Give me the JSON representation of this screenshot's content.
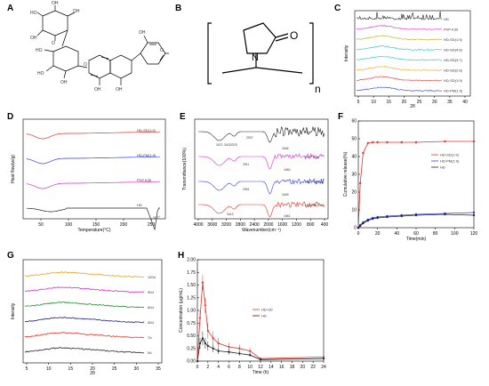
{
  "panels": {
    "A": "A",
    "B": "B",
    "C": "C",
    "D": "D",
    "E": "E",
    "F": "F",
    "G": "G",
    "H": "H"
  },
  "panel_a": {
    "labels": {
      "oh1": "OH",
      "oh2": "OH",
      "oh3": "OH",
      "oh4": "OH",
      "oh5": "OH",
      "oh6": "OH",
      "oh7": "OH",
      "o1": "O",
      "o2": "O",
      "o3": "O",
      "ho1": "HO",
      "ho2": "HO",
      "ho3": "HO"
    }
  },
  "panel_b": {
    "o": "O",
    "n": "N",
    "sub": "n"
  },
  "colors": {
    "black": "#222222",
    "red": "#e8302a",
    "blue": "#2f3fe0",
    "magenta": "#e02ad8",
    "green": "#1a8f2a",
    "orange": "#f0a020",
    "cyan": "#20c0d0",
    "olive": "#b0b020",
    "darkblue": "#1a1a8f"
  },
  "chart_data": [
    {
      "id": "C",
      "type": "line",
      "xlabel": "2θ",
      "ylabel": "Intensity",
      "xticks": [
        "5",
        "10",
        "15",
        "20",
        "25",
        "30",
        "35",
        "40"
      ],
      "series": [
        {
          "name": "HD",
          "color": "#222222"
        },
        {
          "name": "PVP K30",
          "color": "#e02ad8"
        },
        {
          "name": "HD-SD(1:5)",
          "color": "#b0b020"
        },
        {
          "name": "HD-SD(4:6)",
          "color": "#20c0d0"
        },
        {
          "name": "HD-SD(3:7)",
          "color": "#20c0d0"
        },
        {
          "name": "HD-SD(2:8)",
          "color": "#f0a020"
        },
        {
          "name": "HD-SD(1:9)",
          "color": "#e8302a"
        },
        {
          "name": "HD-PM(1:9)",
          "color": "#2f3fe0"
        }
      ]
    },
    {
      "id": "D",
      "type": "line",
      "xlabel": "Temperature(°C)",
      "ylabel": "Heat flow(w/g)",
      "xticks": [
        "50",
        "100",
        "150",
        "200",
        "250"
      ],
      "annotations": [
        "267°"
      ],
      "series": [
        {
          "name": "HD-SD(1:9)",
          "color": "#e8302a"
        },
        {
          "name": "HD-PM(1:9)",
          "color": "#2f3fe0"
        },
        {
          "name": "PVP K30",
          "color": "#e02ad8"
        },
        {
          "name": "HD",
          "color": "#222222"
        }
      ]
    },
    {
      "id": "E",
      "type": "line",
      "xlabel": "Wavenumber(cm⁻¹)",
      "ylabel": "Transmittance(100%)",
      "xticks": [
        "4000",
        "3600",
        "3200",
        "2800",
        "2400",
        "2000",
        "1600",
        "1200",
        "800",
        "400"
      ],
      "annotations": [
        "3470",
        "3421",
        "3378",
        "2937",
        "2911",
        "2951",
        "3413",
        "1646",
        "1660",
        "1649",
        "1661"
      ],
      "series": [
        {
          "name": "HD",
          "color": "#222222"
        },
        {
          "name": "PVP K30",
          "color": "#e02ad8"
        },
        {
          "name": "HD-PM(1:9)",
          "color": "#2f3fe0"
        },
        {
          "name": "HD-SD(1:9)",
          "color": "#e8302a"
        }
      ]
    },
    {
      "id": "F",
      "type": "line",
      "xlabel": "Time(min)",
      "ylabel": "Cumulative release(%)",
      "xticks": [
        "0",
        "20",
        "40",
        "60",
        "80",
        "100",
        "120"
      ],
      "yticks": [
        "0",
        "10",
        "20",
        "30",
        "40",
        "50",
        "60"
      ],
      "ylim": [
        0,
        60
      ],
      "xlim": [
        0,
        120
      ],
      "x": [
        0,
        2,
        5,
        10,
        15,
        20,
        30,
        45,
        60,
        90,
        120
      ],
      "series": [
        {
          "name": "HD-SD(1:9)",
          "color": "#e8302a",
          "values": [
            0,
            25,
            42,
            47.5,
            48,
            48,
            48,
            48,
            48,
            48.5,
            48.5
          ]
        },
        {
          "name": "HD-PM(1:9)",
          "color": "#2f3fe0",
          "values": [
            0,
            1.5,
            3,
            4.5,
            5.5,
            6,
            6.5,
            7,
            7.5,
            8,
            8.5
          ]
        },
        {
          "name": "HD",
          "color": "#222222",
          "values": [
            0,
            1,
            2.5,
            4,
            5,
            5.5,
            6,
            6.5,
            7,
            7.5,
            7
          ]
        }
      ]
    },
    {
      "id": "G",
      "type": "line",
      "xlabel": "2θ",
      "ylabel": "Intensity",
      "xticks": [
        "5",
        "10",
        "15",
        "20",
        "25",
        "30",
        "35"
      ],
      "series": [
        {
          "name": "120d",
          "color": "#f0a020"
        },
        {
          "name": "90d",
          "color": "#e02ad8"
        },
        {
          "name": "60d",
          "color": "#1a8f2a"
        },
        {
          "name": "30d",
          "color": "#1a1a8f"
        },
        {
          "name": "7d",
          "color": "#e8302a"
        },
        {
          "name": "0d",
          "color": "#222222"
        }
      ]
    },
    {
      "id": "H",
      "type": "line",
      "xlabel": "Time (h)",
      "ylabel": "Concentration (μg/mL)",
      "xticks": [
        "0",
        "2",
        "4",
        "6",
        "8",
        "10",
        "12",
        "14",
        "16",
        "18",
        "20",
        "22",
        "24"
      ],
      "yticks": [
        "0.00",
        "0.25",
        "0.50",
        "0.75",
        "1.00",
        "1.25",
        "1.50",
        "1.75",
        "2.00"
      ],
      "ylim": [
        0,
        2.0
      ],
      "xlim": [
        0,
        24
      ],
      "x": [
        0,
        0.5,
        1,
        1.5,
        2,
        3,
        4,
        6,
        8,
        10,
        12,
        24
      ],
      "series": [
        {
          "name": "HD-SD",
          "color": "#e8302a",
          "values": [
            0,
            0.85,
            1.55,
            1.1,
            0.6,
            0.45,
            0.35,
            0.28,
            0.25,
            0.2,
            0.05,
            0.08
          ]
        },
        {
          "name": "HD",
          "color": "#222222",
          "values": [
            0,
            0.35,
            0.45,
            0.35,
            0.3,
            0.25,
            0.2,
            0.18,
            0.15,
            0.12,
            0.03,
            0.05
          ]
        }
      ]
    }
  ]
}
